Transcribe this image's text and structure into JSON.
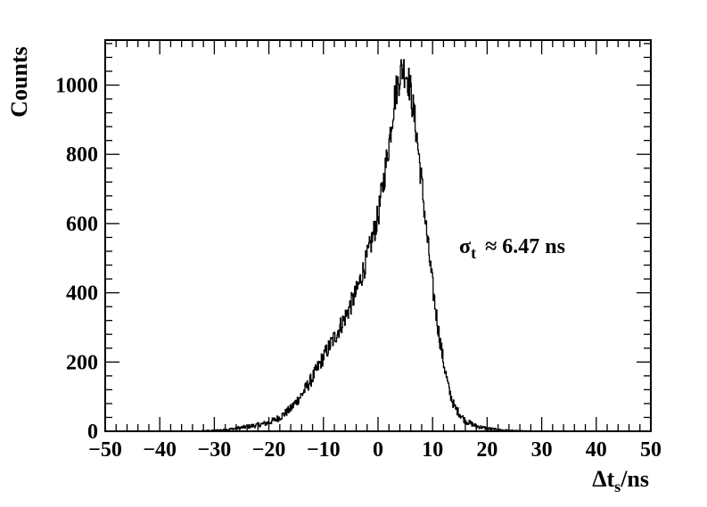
{
  "chart_data": {
    "type": "line",
    "style": "step-histogram",
    "xlabel": {
      "prefix": "Δt",
      "sub": "s",
      "suffix": "/ns"
    },
    "ylabel": "Counts",
    "xlim": [
      -50,
      50
    ],
    "ylim": [
      0,
      1130
    ],
    "xticks": [
      -50,
      -40,
      -30,
      -20,
      -10,
      0,
      10,
      20,
      30,
      40,
      50
    ],
    "xtick_labels": [
      "−50",
      "−40",
      "−30",
      "−20",
      "−10",
      "0",
      "10",
      "20",
      "30",
      "40",
      "50"
    ],
    "yticks": [
      0,
      200,
      400,
      600,
      800,
      1000
    ],
    "ytick_labels": [
      "0",
      "200",
      "400",
      "600",
      "800",
      "1000"
    ],
    "grid": false,
    "annotation": {
      "symbol": "σ",
      "sub": "t",
      "text": "≈ 6.47 ns"
    },
    "series": [
      {
        "x": [
          -30,
          -28,
          -26,
          -24,
          -22,
          -20,
          -18,
          -16,
          -14,
          -12,
          -10,
          -8,
          -6,
          -4,
          -2,
          0,
          1,
          2,
          3,
          4,
          4.5,
          5,
          5.5,
          6,
          7,
          8,
          9,
          10,
          11,
          12,
          13,
          14,
          16,
          18,
          20,
          22,
          25
        ],
        "y": [
          2,
          4,
          8,
          13,
          18,
          25,
          40,
          65,
          105,
          155,
          215,
          270,
          330,
          400,
          500,
          620,
          720,
          830,
          960,
          1030,
          1050,
          1040,
          1020,
          980,
          870,
          720,
          560,
          420,
          300,
          200,
          120,
          70,
          30,
          15,
          8,
          4,
          1
        ],
        "color": "#000000"
      }
    ]
  }
}
